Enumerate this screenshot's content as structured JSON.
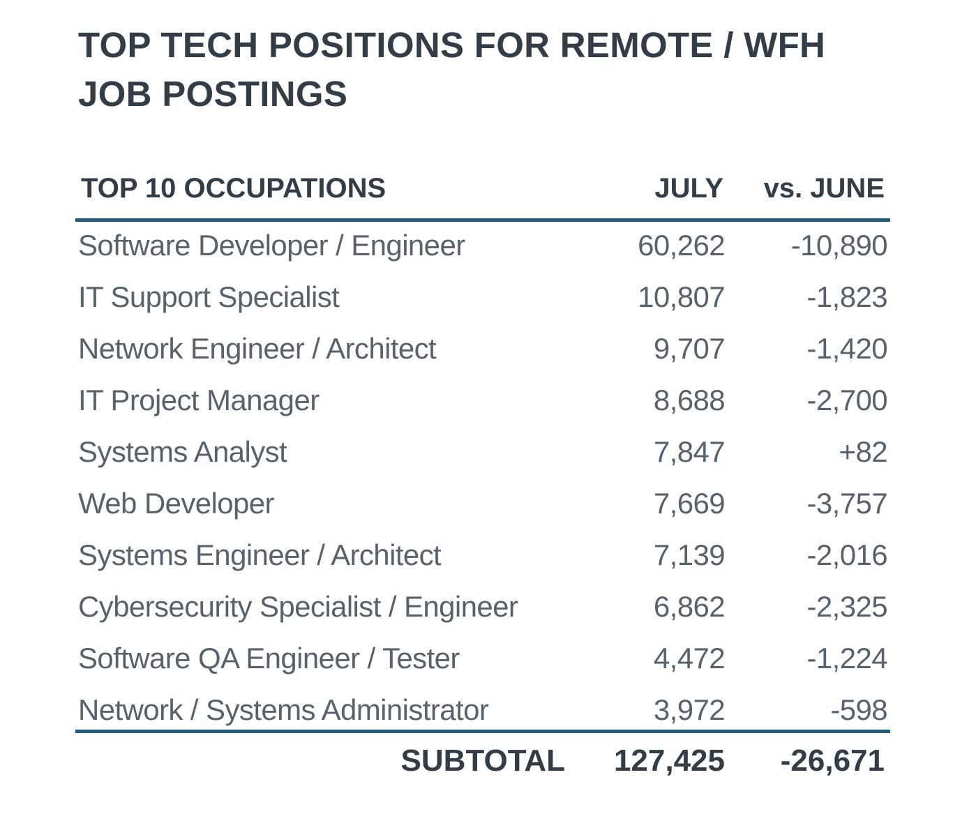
{
  "chart_data": {
    "type": "table",
    "title": "TOP TECH POSITIONS FOR REMOTE / WFH JOB POSTINGS",
    "columns": [
      "TOP 10 OCCUPATIONS",
      "JULY",
      "vs. JUNE"
    ],
    "rows": [
      {
        "occupation": "Software Developer / Engineer",
        "july": "60,262",
        "vs_june": "-10,890"
      },
      {
        "occupation": "IT Support Specialist",
        "july": "10,807",
        "vs_june": "-1,823"
      },
      {
        "occupation": "Network Engineer / Architect",
        "july": "9,707",
        "vs_june": "-1,420"
      },
      {
        "occupation": "IT Project Manager",
        "july": "8,688",
        "vs_june": "-2,700"
      },
      {
        "occupation": "Systems Analyst",
        "july": "7,847",
        "vs_june": "+82"
      },
      {
        "occupation": "Web Developer",
        "july": "7,669",
        "vs_june": "-3,757"
      },
      {
        "occupation": "Systems Engineer / Architect",
        "july": "7,139",
        "vs_june": "-2,016"
      },
      {
        "occupation": "Cybersecurity Specialist / Engineer",
        "july": "6,862",
        "vs_june": "-2,325"
      },
      {
        "occupation": "Software QA Engineer / Tester",
        "july": "4,472",
        "vs_june": "-1,224"
      },
      {
        "occupation": "Network / Systems Administrator",
        "july": "3,972",
        "vs_june": "-598"
      }
    ],
    "subtotal": {
      "label": "SUBTOTAL",
      "july": "127,425",
      "vs_june": "-26,671"
    }
  },
  "colors": {
    "rule": "#1f5c77",
    "heading_text": "#333d47",
    "body_text": "#58626c"
  }
}
